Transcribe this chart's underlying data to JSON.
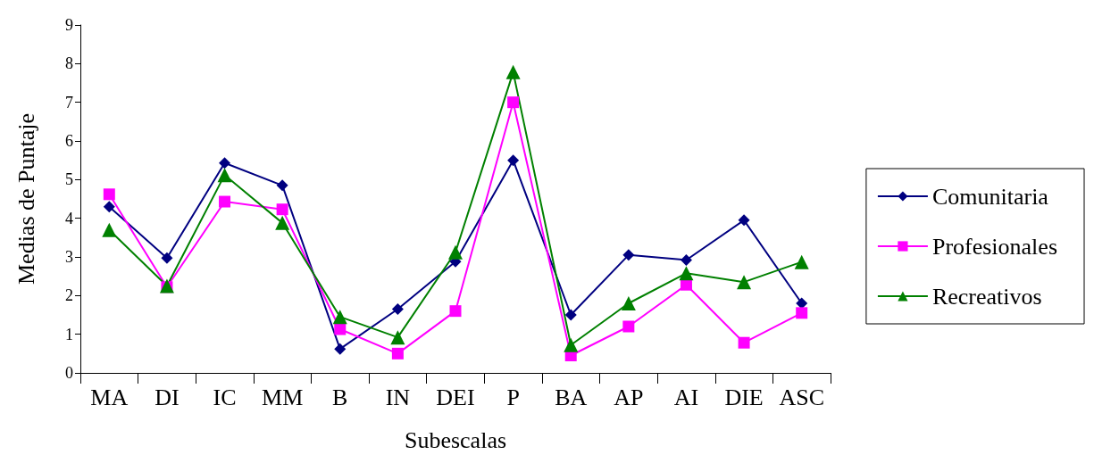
{
  "chart_data": {
    "type": "line",
    "xlabel": "Subescalas",
    "ylabel": "Medias de Puntaje",
    "categories": [
      "MA",
      "DI",
      "IC",
      "MM",
      "B",
      "IN",
      "DEI",
      "P",
      "BA",
      "AP",
      "AI",
      "DIE",
      "ASC"
    ],
    "series": [
      {
        "name": "Comunitaria",
        "color": "#000080",
        "marker": "diamond",
        "values": [
          4.3,
          2.97,
          5.43,
          4.85,
          0.62,
          1.65,
          2.88,
          5.5,
          1.5,
          3.05,
          2.92,
          3.95,
          1.8
        ]
      },
      {
        "name": "Profesionales",
        "color": "#ff00ff",
        "marker": "square",
        "values": [
          4.62,
          2.22,
          4.43,
          4.23,
          1.13,
          0.5,
          1.6,
          7.0,
          0.45,
          1.2,
          2.28,
          0.78,
          1.55
        ]
      },
      {
        "name": "Recreativos",
        "color": "#008000",
        "marker": "triangle",
        "values": [
          3.7,
          2.25,
          5.12,
          3.88,
          1.45,
          0.92,
          3.12,
          7.78,
          0.72,
          1.8,
          2.58,
          2.35,
          2.87
        ]
      }
    ],
    "ylim": [
      0,
      9
    ],
    "yticks": [
      0,
      1,
      2,
      3,
      4,
      5,
      6,
      7,
      8,
      9
    ],
    "grid": false,
    "legend": "right",
    "line_style": "solid"
  }
}
